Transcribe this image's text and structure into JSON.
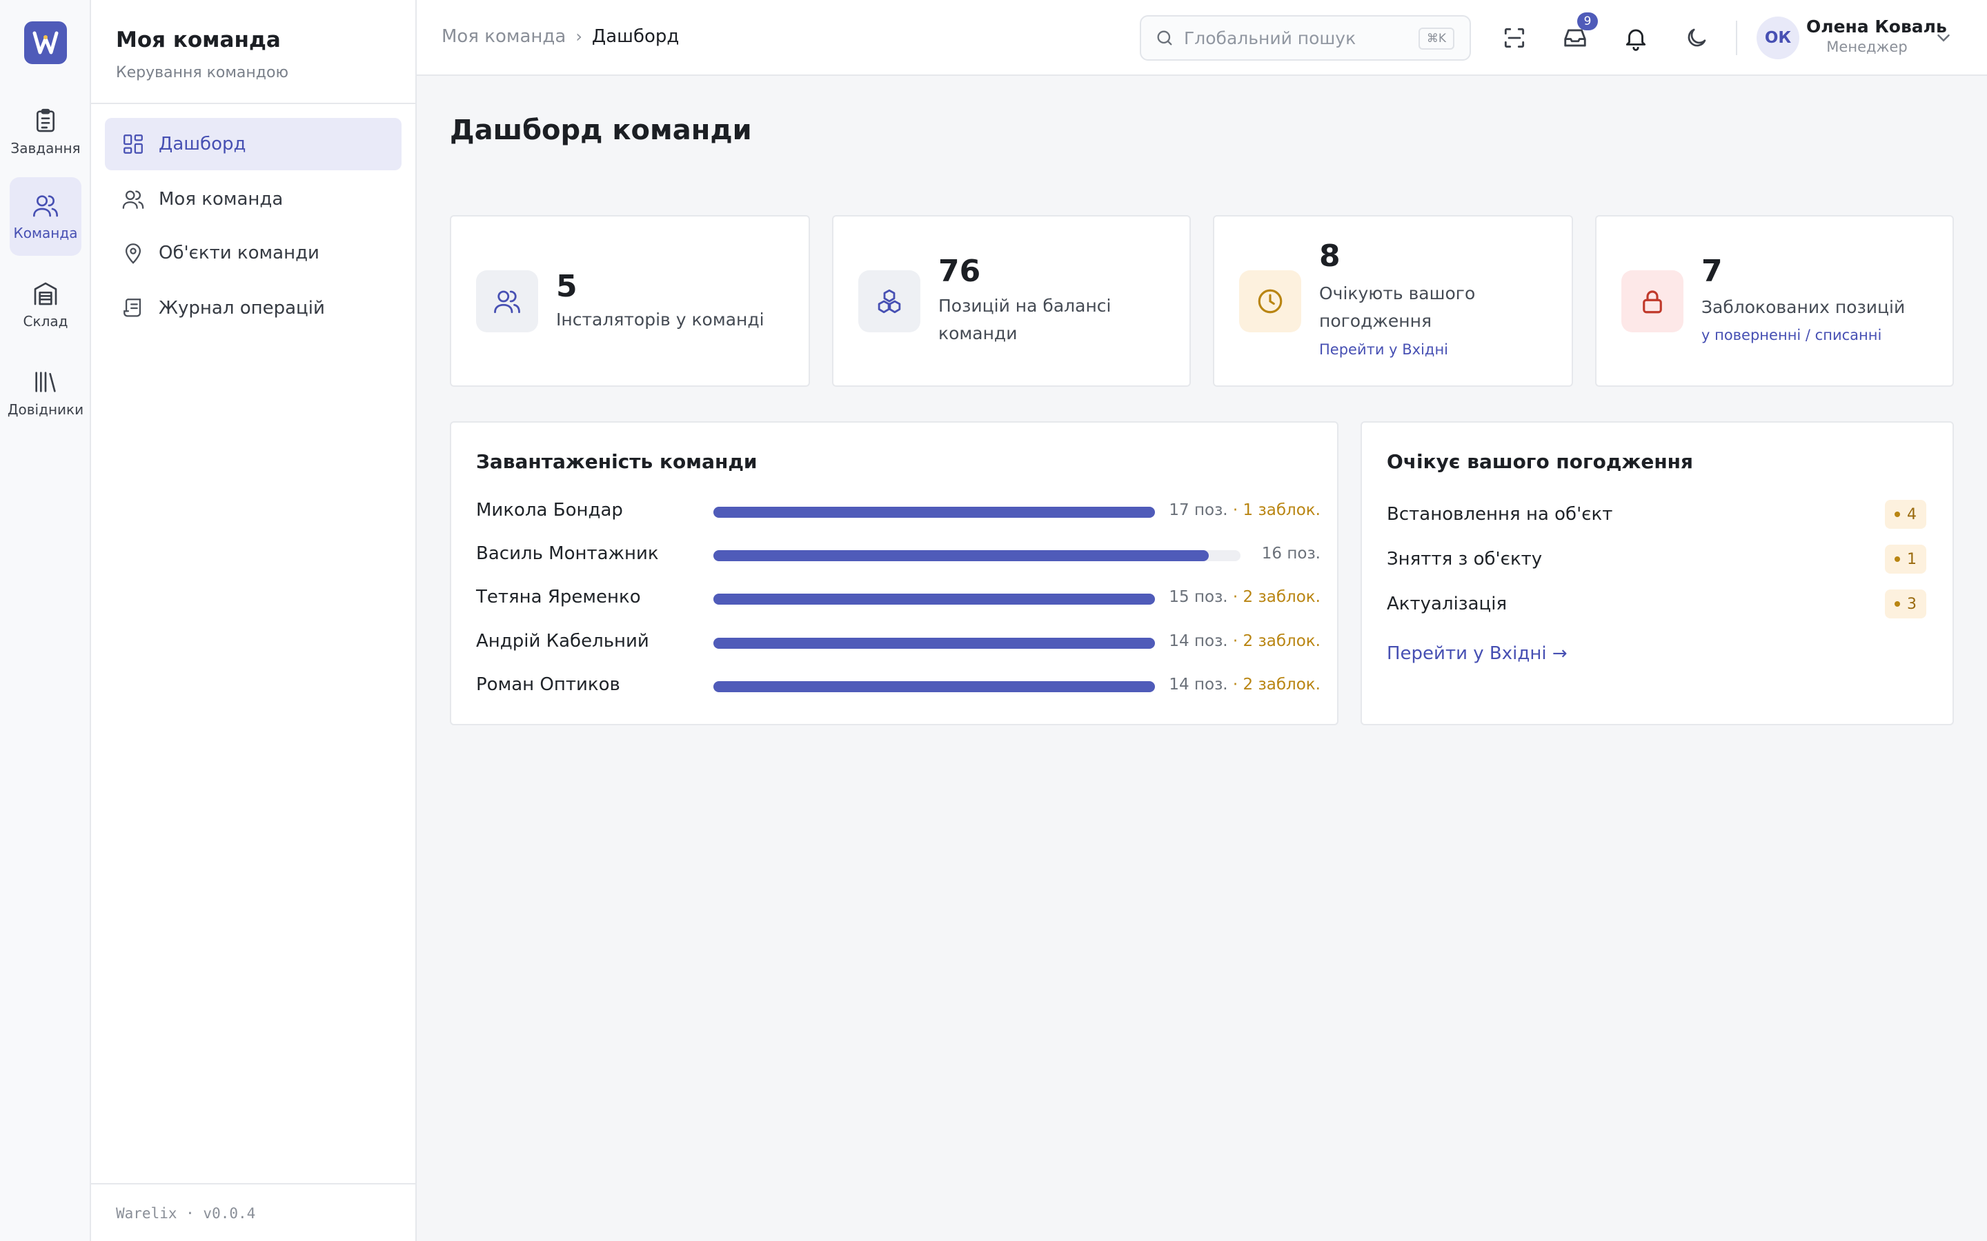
{
  "rail": {
    "items": [
      {
        "label": "Завдання",
        "icon": "clipboard-icon"
      },
      {
        "label": "Команда",
        "icon": "users-icon"
      },
      {
        "label": "Склад",
        "icon": "warehouse-icon"
      },
      {
        "label": "Довідники",
        "icon": "library-icon"
      }
    ],
    "active": 1
  },
  "sidebar": {
    "title": "Моя команда",
    "subtitle": "Керування командою",
    "items": [
      {
        "label": "Дашборд",
        "icon": "dashboard-icon"
      },
      {
        "label": "Моя команда",
        "icon": "users-icon"
      },
      {
        "label": "Об'єкти команди",
        "icon": "map-pin-icon"
      },
      {
        "label": "Журнал операцій",
        "icon": "scroll-icon"
      }
    ],
    "version": "Warelix · v0.0.4"
  },
  "header": {
    "breadcrumb": [
      "Моя команда",
      "Дашборд"
    ],
    "breadcrumb_sep": "›",
    "search_placeholder": "Глобальний пошук",
    "search_shortcut": "⌘K",
    "inbox_count": "9",
    "user": {
      "initials": "ОК",
      "name": "Олена Коваль",
      "role": "Менеджер"
    }
  },
  "main": {
    "title": "Дашборд команди",
    "stats": [
      {
        "value": "5",
        "label": "Інсталяторів у команді",
        "icon": "users-icon"
      },
      {
        "value": "76",
        "label": "Позицій на балансі команди",
        "icon": "boxes-icon"
      },
      {
        "value": "8",
        "label": "Очікують вашого погодження",
        "link": "Перейти у Вхідні",
        "icon": "clock-icon"
      },
      {
        "value": "7",
        "label": "Заблокованих позицій",
        "link": "у поверненні / списанні",
        "icon": "lock-icon"
      }
    ],
    "workload": {
      "title": "Завантаженість команди",
      "max": 16,
      "rows": [
        {
          "name": "Микола Бондар",
          "positions": 17,
          "pos_label": "17 поз.",
          "blocked_label": " · 1 заблок."
        },
        {
          "name": "Василь Монтажник",
          "positions": 16,
          "pos_label": "16 поз.",
          "blocked_label": ""
        },
        {
          "name": "Тетяна Яременко",
          "positions": 15,
          "pos_label": "15 поз.",
          "blocked_label": " · 2 заблок."
        },
        {
          "name": "Андрій Кабельний",
          "positions": 14,
          "pos_label": "14 поз.",
          "blocked_label": " · 2 заблок."
        },
        {
          "name": "Роман Оптиков",
          "positions": 14,
          "pos_label": "14 поз.",
          "blocked_label": " · 2 заблок."
        }
      ]
    },
    "approvals": {
      "title": "Очікує вашого погодження",
      "rows": [
        {
          "label": "Встановлення на об'єкт",
          "count": "4"
        },
        {
          "label": "Зняття з об'єкту",
          "count": "1"
        },
        {
          "label": "Актуалізація",
          "count": "3"
        }
      ],
      "link": "Перейти у Вхідні →"
    }
  },
  "colors": {
    "accent": "#4f5bb9",
    "warning": "#b98512",
    "danger": "#c0392b"
  }
}
